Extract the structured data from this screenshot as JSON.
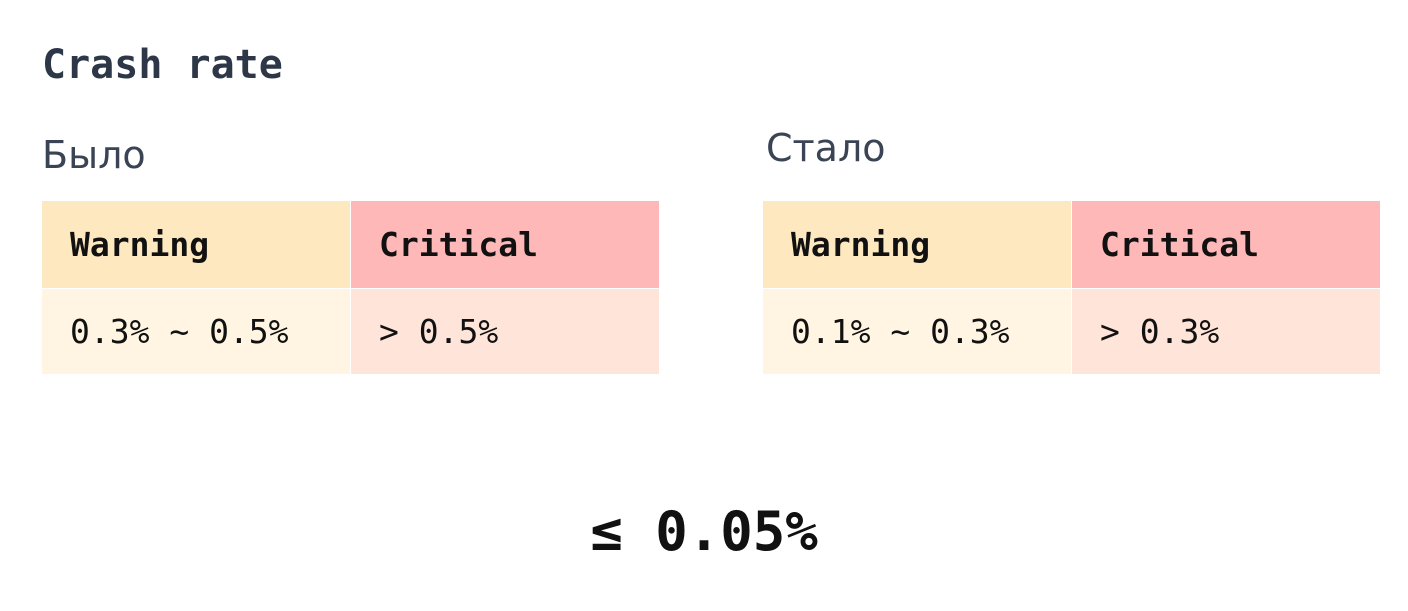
{
  "title": "Crash rate",
  "before": {
    "label": "Было",
    "table": {
      "headers": [
        "Warning",
        "Critical"
      ],
      "rows": [
        [
          "0.3% ~ 0.5%",
          "> 0.5%"
        ]
      ]
    }
  },
  "after": {
    "label": "Стало",
    "table": {
      "headers": [
        "Warning",
        "Critical"
      ],
      "rows": [
        [
          "0.1% ~ 0.3%",
          "> 0.3%"
        ]
      ]
    }
  },
  "target": "≤ 0.05%"
}
